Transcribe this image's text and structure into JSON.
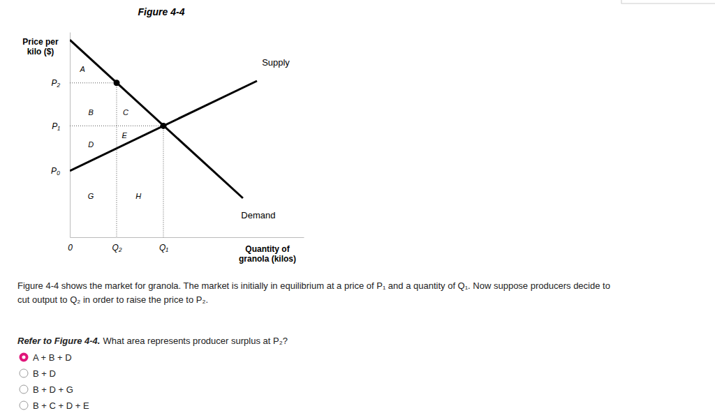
{
  "chart_data": {
    "type": "line",
    "title": "Figure 4-4",
    "x_label": [
      "Quantity of",
      "granola (kilos)"
    ],
    "y_label": [
      "Price per",
      "kilo ($)"
    ],
    "xlim": [
      0,
      10
    ],
    "ylim": [
      0,
      10.5
    ],
    "xticks": [
      0,
      {
        "value": 2,
        "label": "Q₂"
      },
      {
        "value": 4,
        "label": "Q₁"
      }
    ],
    "yticks": [
      {
        "value": 3.4,
        "label": "P₀"
      },
      {
        "value": 5.7,
        "label": "P₁"
      },
      {
        "value": 7.9,
        "label": "P₂"
      }
    ],
    "series": [
      {
        "name": "Supply",
        "color": "#000000",
        "x": [
          0,
          8
        ],
        "values": [
          3.4,
          8.0
        ]
      },
      {
        "name": "Demand",
        "color": "#000000",
        "x": [
          0,
          7.4
        ],
        "values": [
          10.1,
          2.0
        ]
      }
    ],
    "points": [
      {
        "x": 2,
        "y": 7.9
      },
      {
        "x": 4,
        "y": 5.7
      }
    ],
    "annotations": [
      {
        "text": "A",
        "x": 0.54,
        "y": 8.57
      },
      {
        "text": "B",
        "x": 0.9,
        "y": 6.36
      },
      {
        "text": "C",
        "x": 2.39,
        "y": 6.36
      },
      {
        "text": "E",
        "x": 2.33,
        "y": 5.18
      },
      {
        "text": "D",
        "x": 0.9,
        "y": 4.71
      },
      {
        "text": "G",
        "x": 0.9,
        "y": 2.07
      },
      {
        "text": "H",
        "x": 2.93,
        "y": 2.07
      }
    ]
  },
  "caption": [
    "Figure 4-4 shows the market for granola. The market is initially in equilibrium at a price of P₁ and a quantity of Q₁. Now suppose producers decide to",
    "cut output to Q₂ in order to raise the price to P₂."
  ],
  "question": {
    "lead": "Refer to Figure 4-4.",
    "text": "What area represents producer surplus at P₂?"
  },
  "options": [
    "A + B + D",
    "B + D",
    "B + D + G",
    "B + C + D + E"
  ],
  "selected": 0
}
